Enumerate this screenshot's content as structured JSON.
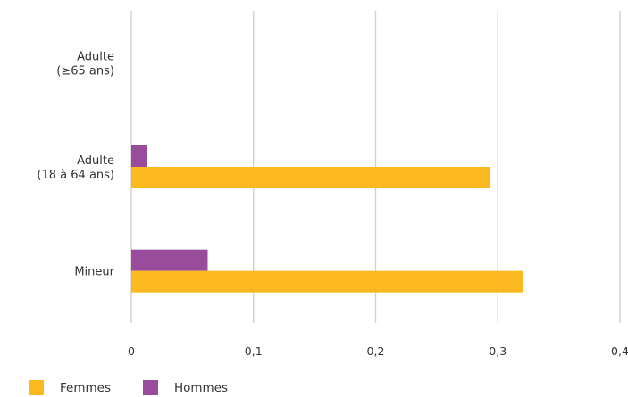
{
  "chart_data": {
    "type": "bar",
    "orientation": "horizontal",
    "categories": [
      {
        "lines": [
          "Adulte",
          "(≥65 ans)"
        ]
      },
      {
        "lines": [
          "Adulte",
          "(18 à 64 ans)"
        ]
      },
      {
        "lines": [
          "Mineur"
        ]
      }
    ],
    "series": [
      {
        "name": "Hommes",
        "color": "#994C9B",
        "values": [
          0,
          0.0125,
          0.0625
        ]
      },
      {
        "name": "Femmes",
        "color": "#FBB81F",
        "values": [
          0,
          0.294,
          0.321
        ]
      }
    ],
    "xlim": [
      0,
      0.4
    ],
    "xticks": [
      {
        "value": 0,
        "label": "0"
      },
      {
        "value": 0.1,
        "label": "0,1"
      },
      {
        "value": 0.2,
        "label": "0,2"
      },
      {
        "value": 0.3,
        "label": "0,3"
      },
      {
        "value": 0.4,
        "label": "0,4"
      }
    ],
    "grid": "vertical",
    "legend_position": "bottom-left",
    "legend": [
      {
        "name": "Femmes",
        "color": "#FBB81F"
      },
      {
        "name": "Hommes",
        "color": "#994C9B"
      }
    ]
  }
}
